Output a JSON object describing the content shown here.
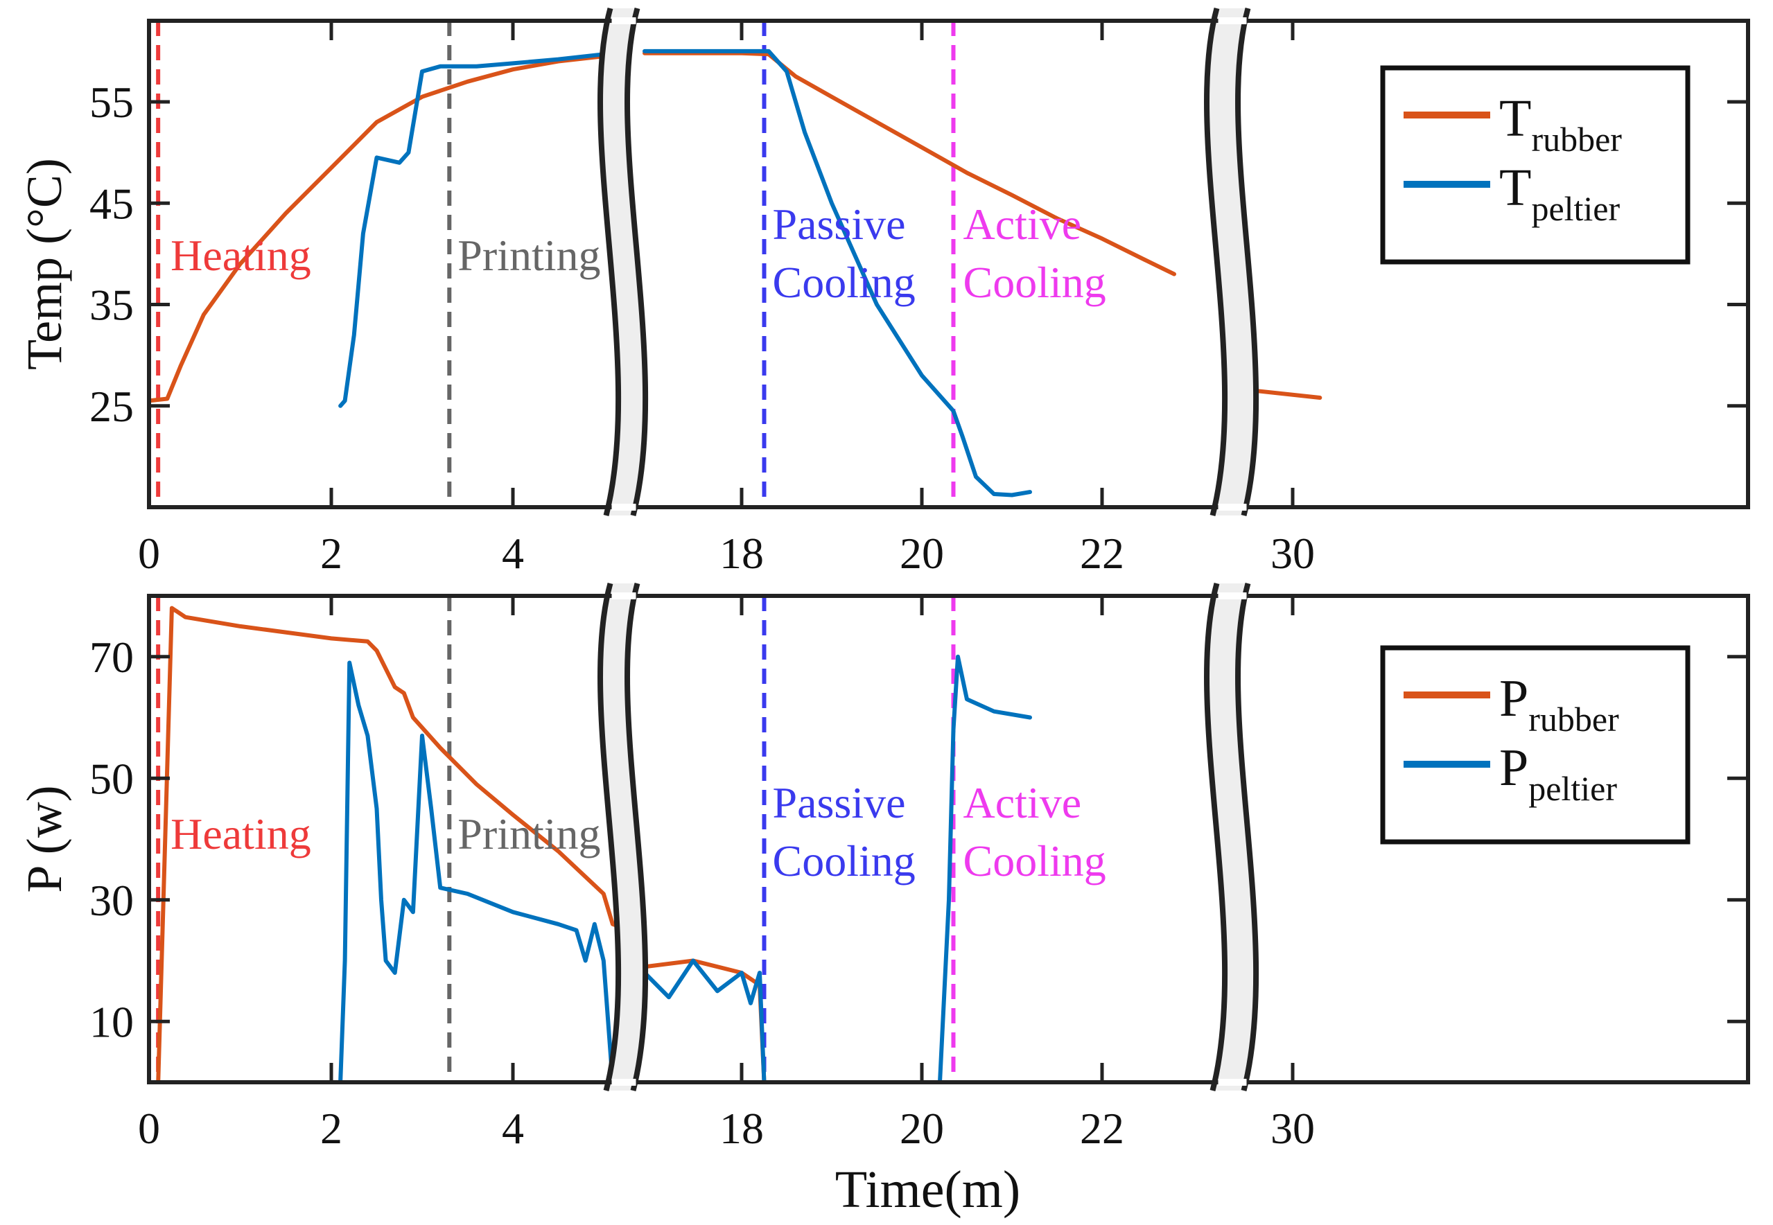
{
  "chart_data": [
    {
      "type": "line",
      "ylabel": "Temp (°C)",
      "xlabel": "",
      "ylim": [
        15,
        63
      ],
      "yticks": [
        25,
        35,
        45,
        55
      ],
      "xticks": [
        {
          "label": "0",
          "x": 0
        },
        {
          "label": "2",
          "x": 2
        },
        {
          "label": "4",
          "x": 4
        },
        {
          "label": "18",
          "x": 18
        },
        {
          "label": "20",
          "x": 20
        },
        {
          "label": "22",
          "x": 22
        },
        {
          "label": "30",
          "x": 30
        }
      ],
      "axis_breaks": [
        [
          5.2,
          17.6
        ],
        [
          23.0,
          29.6
        ]
      ],
      "grid": false,
      "legend_position": "top-right",
      "phases": [
        {
          "label_lines": [
            "Heating"
          ],
          "x": 0.1,
          "color": "#ee3a3a"
        },
        {
          "label_lines": [
            "Printing"
          ],
          "x": 3.3,
          "color": "#666666"
        },
        {
          "label_lines": [
            "Passive",
            "Cooling"
          ],
          "x": 18.25,
          "color": "#3a3aee"
        },
        {
          "label_lines": [
            "Active",
            "Cooling"
          ],
          "x": 20.35,
          "color": "#ee3aee"
        }
      ],
      "series": [
        {
          "name": "rubber",
          "legend_main": "T",
          "legend_sub": "rubber",
          "color": "#d95319",
          "points": [
            [
              0,
              25.5
            ],
            [
              0.2,
              25.7
            ],
            [
              0.35,
              29
            ],
            [
              0.6,
              34
            ],
            [
              1,
              39
            ],
            [
              1.5,
              44
            ],
            [
              2,
              48.5
            ],
            [
              2.5,
              53
            ],
            [
              3,
              55.5
            ],
            [
              3.5,
              57
            ],
            [
              4,
              58.2
            ],
            [
              4.5,
              59
            ],
            [
              5,
              59.5
            ],
            [
              5.2,
              59.7
            ],
            null,
            [
              17.6,
              59.8
            ],
            [
              18,
              59.8
            ],
            [
              18.3,
              59.7
            ],
            [
              18.6,
              57.5
            ],
            [
              19,
              55.5
            ],
            [
              19.5,
              53
            ],
            [
              20,
              50.5
            ],
            [
              20.5,
              48
            ],
            [
              21,
              45.8
            ],
            [
              21.5,
              43.5
            ],
            [
              22,
              41.5
            ],
            [
              22.5,
              39.3
            ],
            [
              22.8,
              38
            ],
            null,
            [
              29.6,
              26.5
            ],
            [
              30.3,
              25.8
            ]
          ]
        },
        {
          "name": "peltier",
          "legend_main": "T",
          "legend_sub": "peltier",
          "color": "#0072bd",
          "points": [
            [
              2.1,
              25
            ],
            [
              2.15,
              25.5
            ],
            [
              2.25,
              32
            ],
            [
              2.35,
              42
            ],
            [
              2.5,
              49.5
            ],
            [
              2.65,
              49.2
            ],
            [
              2.75,
              49
            ],
            [
              2.85,
              50
            ],
            [
              3,
              58
            ],
            [
              3.2,
              58.5
            ],
            [
              3.6,
              58.5
            ],
            [
              4,
              58.8
            ],
            [
              4.5,
              59.2
            ],
            [
              5,
              59.7
            ],
            [
              5.1,
              62
            ],
            null,
            [
              17.6,
              60
            ],
            [
              18,
              60
            ],
            [
              18.3,
              60
            ],
            [
              18.5,
              58
            ],
            [
              18.7,
              52
            ],
            [
              19,
              45
            ],
            [
              19.5,
              35
            ],
            [
              20,
              28
            ],
            [
              20.3,
              25
            ],
            [
              20.35,
              24.5
            ],
            [
              20.45,
              22
            ],
            [
              20.6,
              18
            ],
            [
              20.8,
              16.3
            ],
            [
              21,
              16.2
            ],
            [
              21.2,
              16.5
            ]
          ]
        }
      ]
    },
    {
      "type": "line",
      "ylabel": "P (w)",
      "xlabel": "Time(m)",
      "ylim": [
        0,
        80
      ],
      "yticks": [
        10,
        30,
        50,
        70
      ],
      "xticks": [
        {
          "label": "0",
          "x": 0
        },
        {
          "label": "2",
          "x": 2
        },
        {
          "label": "4",
          "x": 4
        },
        {
          "label": "18",
          "x": 18
        },
        {
          "label": "20",
          "x": 20
        },
        {
          "label": "22",
          "x": 22
        },
        {
          "label": "30",
          "x": 30
        }
      ],
      "axis_breaks": [
        [
          5.2,
          17.6
        ],
        [
          23.0,
          29.6
        ]
      ],
      "grid": false,
      "legend_position": "top-right",
      "phases": [
        {
          "label_lines": [
            "Heating"
          ],
          "x": 0.1,
          "color": "#ee3a3a"
        },
        {
          "label_lines": [
            "Printing"
          ],
          "x": 3.3,
          "color": "#666666"
        },
        {
          "label_lines": [
            "Passive",
            "Cooling"
          ],
          "x": 18.25,
          "color": "#3a3aee"
        },
        {
          "label_lines": [
            "Active",
            "Cooling"
          ],
          "x": 20.35,
          "color": "#ee3aee"
        }
      ],
      "series": [
        {
          "name": "rubber",
          "legend_main": "P",
          "legend_sub": "rubber",
          "color": "#d95319",
          "points": [
            [
              0,
              0
            ],
            [
              0.1,
              0
            ],
            [
              0.25,
              78
            ],
            [
              0.4,
              76.5
            ],
            [
              1,
              75
            ],
            [
              1.5,
              74
            ],
            [
              2,
              73
            ],
            [
              2.4,
              72.5
            ],
            [
              2.5,
              71
            ],
            [
              2.6,
              68
            ],
            [
              2.7,
              65
            ],
            [
              2.8,
              64
            ],
            [
              2.9,
              60
            ],
            [
              3.2,
              55
            ],
            [
              3.6,
              49
            ],
            [
              4,
              44
            ],
            [
              4.5,
              38
            ],
            [
              5,
              31
            ],
            [
              5.1,
              26
            ],
            [
              5.2,
              25.5
            ],
            null,
            [
              17.6,
              19
            ],
            [
              17.8,
              20
            ],
            [
              18,
              18
            ],
            [
              18.2,
              16
            ],
            [
              18.25,
              0
            ],
            [
              20,
              0
            ],
            [
              22,
              0
            ],
            [
              22.8,
              0
            ],
            null,
            [
              29.6,
              0
            ],
            [
              30.3,
              0
            ]
          ]
        },
        {
          "name": "peltier",
          "legend_main": "P",
          "legend_sub": "peltier",
          "color": "#0072bd",
          "points": [
            [
              2.1,
              0
            ],
            [
              2.15,
              20
            ],
            [
              2.2,
              69
            ],
            [
              2.3,
              62
            ],
            [
              2.4,
              57
            ],
            [
              2.5,
              45
            ],
            [
              2.55,
              30
            ],
            [
              2.6,
              20
            ],
            [
              2.7,
              18
            ],
            [
              2.8,
              30
            ],
            [
              2.9,
              28
            ],
            [
              3,
              57
            ],
            [
              3.1,
              45
            ],
            [
              3.2,
              32
            ],
            [
              3.5,
              31
            ],
            [
              4,
              28
            ],
            [
              4.5,
              26
            ],
            [
              4.7,
              25
            ],
            [
              4.8,
              20
            ],
            [
              4.9,
              26
            ],
            [
              5,
              20
            ],
            [
              5.1,
              0
            ],
            [
              5.2,
              0
            ],
            null,
            [
              17.6,
              18
            ],
            [
              17.7,
              14
            ],
            [
              17.8,
              20
            ],
            [
              17.9,
              15
            ],
            [
              18,
              18
            ],
            [
              18.1,
              13
            ],
            [
              18.2,
              18
            ],
            [
              18.25,
              0
            ],
            [
              20.2,
              0
            ],
            [
              20.3,
              30
            ],
            [
              20.35,
              58
            ],
            [
              20.4,
              70
            ],
            [
              20.5,
              63
            ],
            [
              20.8,
              61
            ],
            [
              21.2,
              60
            ]
          ]
        }
      ]
    }
  ]
}
